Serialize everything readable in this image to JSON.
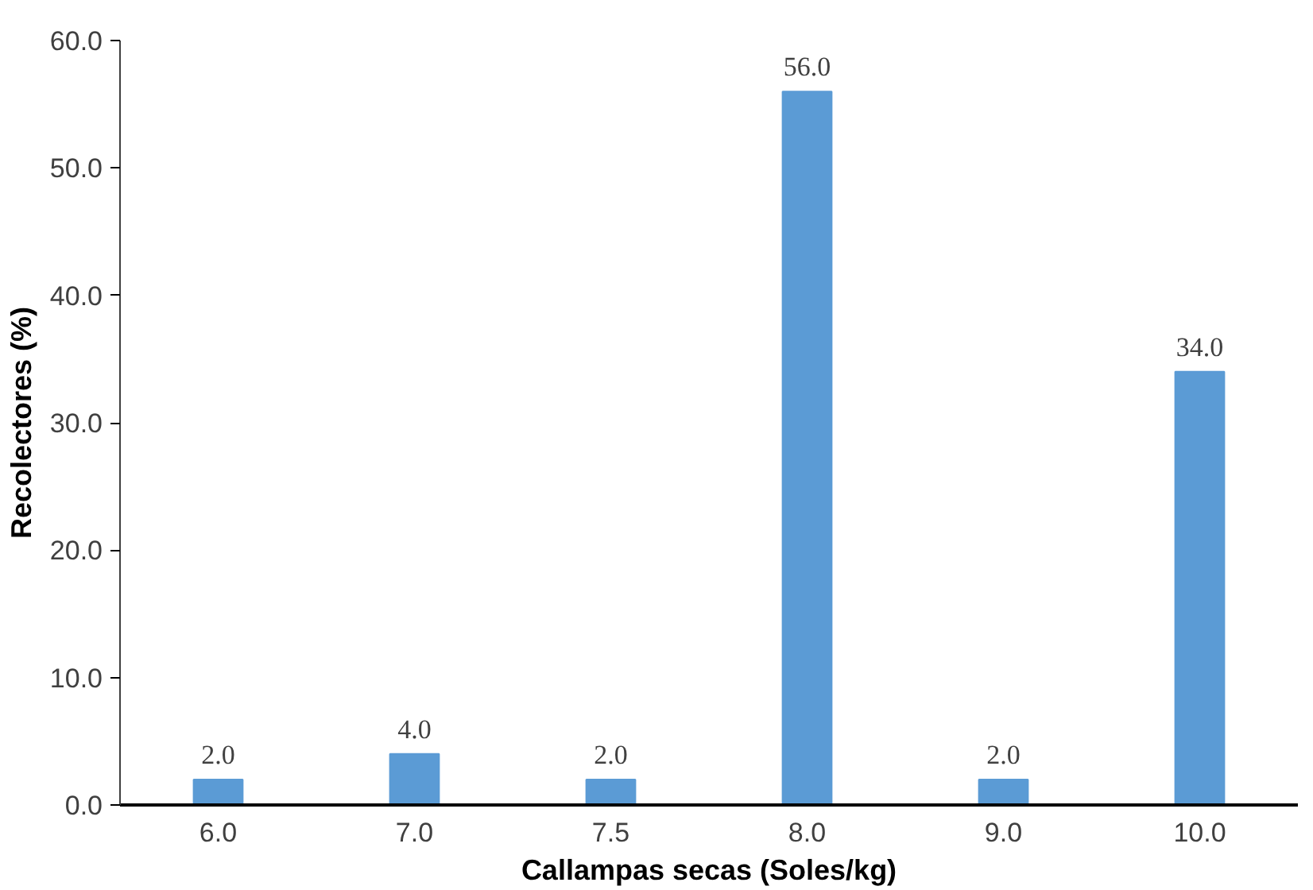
{
  "chart_data": {
    "type": "bar",
    "xlabel": "Callampas secas (Soles/kg)",
    "ylabel": "Recolectores (%)",
    "categories": [
      "6.0",
      "7.0",
      "7.5",
      "8.0",
      "9.0",
      "10.0"
    ],
    "values": [
      2,
      4,
      2,
      56,
      2,
      34
    ],
    "value_labels": [
      "2.0",
      "4.0",
      "2.0",
      "56.0",
      "2.0",
      "34.0"
    ],
    "color": "#5b9bd5",
    "ylim": [
      0,
      60
    ],
    "yticks": [
      {
        "value": 0,
        "label": "0.0"
      },
      {
        "value": 10,
        "label": "10.0"
      },
      {
        "value": 20,
        "label": "20.0"
      },
      {
        "value": 30,
        "label": "30.0"
      },
      {
        "value": 40,
        "label": "40.0"
      },
      {
        "value": 50,
        "label": "50.0"
      },
      {
        "value": 60,
        "label": "60.0"
      }
    ],
    "grid": false
  }
}
